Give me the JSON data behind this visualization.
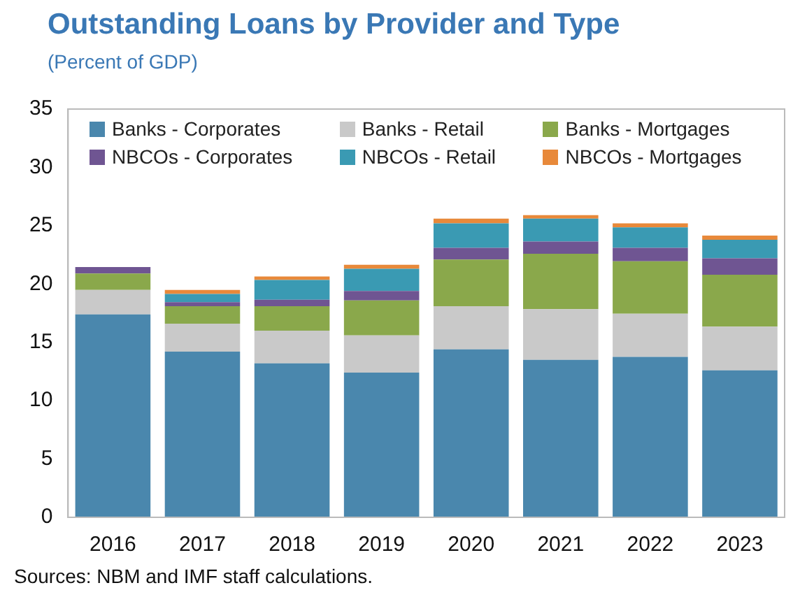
{
  "chart_data": {
    "type": "bar",
    "title": "Outstanding Loans by Provider and Type",
    "subtitle": "(Percent of GDP)",
    "categories": [
      "2016",
      "2017",
      "2018",
      "2019",
      "2020",
      "2021",
      "2022",
      "2023"
    ],
    "stacked": true,
    "series": [
      {
        "name": "Banks - Corporates",
        "color": "#4a87ad",
        "values": [
          17.4,
          14.2,
          13.2,
          12.4,
          14.4,
          13.5,
          13.75,
          12.6
        ]
      },
      {
        "name": "Banks - Retail",
        "color": "#c9c9c9",
        "values": [
          2.1,
          2.4,
          2.8,
          3.2,
          3.7,
          4.35,
          3.7,
          3.75
        ]
      },
      {
        "name": "Banks - Mortgages",
        "color": "#8aa84b",
        "values": [
          1.4,
          1.5,
          2.1,
          3.0,
          4.0,
          4.75,
          4.5,
          4.45
        ]
      },
      {
        "name": "NBCOs - Corporates",
        "color": "#6f5592",
        "values": [
          0.55,
          0.35,
          0.55,
          0.8,
          1.0,
          1.05,
          1.15,
          1.4
        ]
      },
      {
        "name": "NBCOs - Retail",
        "color": "#3a9ab3",
        "values": [
          0,
          0.7,
          1.7,
          1.9,
          2.1,
          1.95,
          1.75,
          1.6
        ]
      },
      {
        "name": "NBCOs - Mortgages",
        "color": "#e8893a",
        "values": [
          0,
          0.35,
          0.3,
          0.35,
          0.4,
          0.3,
          0.35,
          0.35
        ]
      }
    ],
    "ylim": [
      0,
      35
    ],
    "yticks": [
      0,
      5,
      10,
      15,
      20,
      25,
      30,
      35
    ],
    "grid": false,
    "legend": "top",
    "annotations": [
      "Sources: NBM and IMF staff calculations."
    ]
  }
}
